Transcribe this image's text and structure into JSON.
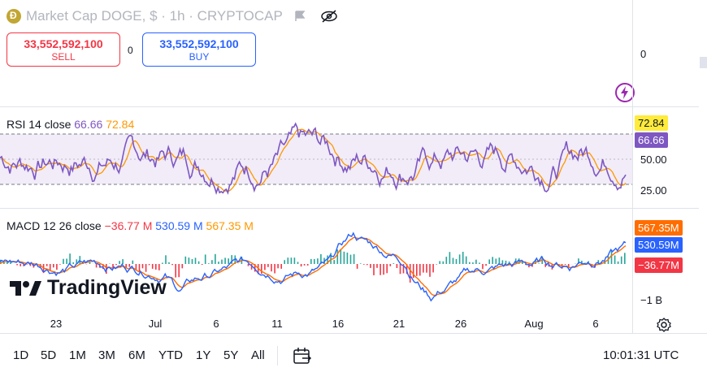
{
  "header": {
    "title": "Market Cap DOGE, $ · 1h · CRYPTOCAP",
    "sell_price": "33,552,592,100",
    "sell_label": "SELL",
    "spread": "0",
    "buy_price": "33,552,592,100",
    "buy_label": "BUY"
  },
  "price_scale": {
    "zero_label": "0"
  },
  "rsi": {
    "label": "RSI 14 close",
    "value1": "66.66",
    "value2": "72.84",
    "tag_upper": "72.84",
    "tag_lower": "66.66",
    "axis_labels": [
      "50.00",
      "25.00"
    ]
  },
  "macd": {
    "label": "MACD 12 26 close",
    "value_hist": "−36.77 M",
    "value_macd": "530.59 M",
    "value_signal": "567.35 M",
    "tag_signal": "567.35M",
    "tag_macd": "530.59M",
    "tag_hist": "−36.77M",
    "axis_label": "−1 B"
  },
  "x_axis": [
    "23",
    "Jul",
    "6",
    "11",
    "16",
    "21",
    "26",
    "Aug",
    "6"
  ],
  "timeframes": [
    "1D",
    "5D",
    "1M",
    "3M",
    "6M",
    "YTD",
    "1Y",
    "5Y",
    "All"
  ],
  "clock": "10:01:31 UTC",
  "brand": "TradingView",
  "colors": {
    "rsi_line": "#7e57c2",
    "rsi_ma": "#ff9800",
    "macd_line": "#2962ff",
    "signal_line": "#ff6d00",
    "hist_pos": "#26a69a",
    "hist_neg": "#f23645"
  }
}
